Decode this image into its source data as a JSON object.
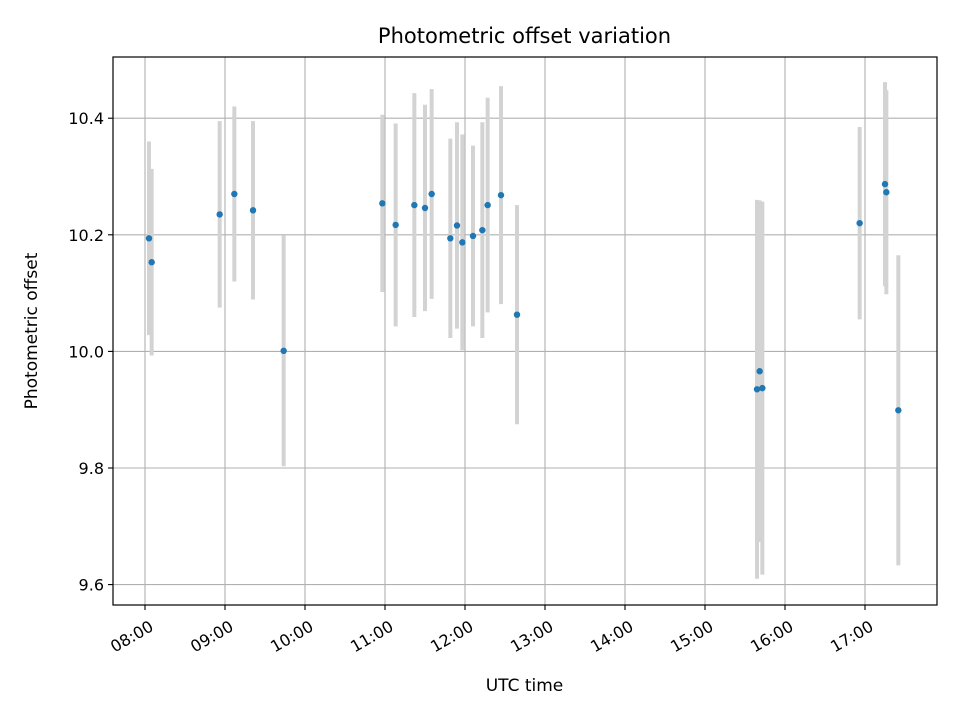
{
  "chart_data": {
    "type": "scatter",
    "title": "Photometric offset variation",
    "xlabel": "UTC time",
    "ylabel": "Photometric offset",
    "xlim": [
      "07:36",
      "17:54"
    ],
    "ylim": [
      9.565,
      10.505
    ],
    "grid": true,
    "x_tick_labels": [
      "08:00",
      "09:00",
      "10:00",
      "11:00",
      "12:00",
      "13:00",
      "14:00",
      "15:00",
      "16:00",
      "17:00"
    ],
    "y_tick_labels": [
      "9.6",
      "9.8",
      "10.0",
      "10.2",
      "10.4"
    ],
    "point_color": "#1f77b4",
    "errorbar_color": "#d3d3d3",
    "points": [
      {
        "time": "08:03",
        "y": 10.194,
        "err": 0.166
      },
      {
        "time": "08:05",
        "y": 10.153,
        "err": 0.16
      },
      {
        "time": "08:56",
        "y": 10.235,
        "err": 0.16
      },
      {
        "time": "09:07",
        "y": 10.27,
        "err": 0.15
      },
      {
        "time": "09:21",
        "y": 10.242,
        "err": 0.153
      },
      {
        "time": "09:44",
        "y": 10.001,
        "err": 0.198
      },
      {
        "time": "10:58",
        "y": 10.254,
        "err": 0.152
      },
      {
        "time": "11:08",
        "y": 10.217,
        "err": 0.174
      },
      {
        "time": "11:22",
        "y": 10.251,
        "err": 0.192
      },
      {
        "time": "11:30",
        "y": 10.246,
        "err": 0.177
      },
      {
        "time": "11:35",
        "y": 10.27,
        "err": 0.18
      },
      {
        "time": "11:49",
        "y": 10.194,
        "err": 0.171
      },
      {
        "time": "11:54",
        "y": 10.216,
        "err": 0.177
      },
      {
        "time": "11:58",
        "y": 10.187,
        "err": 0.185
      },
      {
        "time": "12:06",
        "y": 10.198,
        "err": 0.155
      },
      {
        "time": "12:13",
        "y": 10.208,
        "err": 0.185
      },
      {
        "time": "12:17",
        "y": 10.251,
        "err": 0.184
      },
      {
        "time": "12:27",
        "y": 10.268,
        "err": 0.187
      },
      {
        "time": "12:39",
        "y": 10.063,
        "err": 0.188
      },
      {
        "time": "15:39",
        "y": 9.935,
        "err": 0.325
      },
      {
        "time": "15:41",
        "y": 9.966,
        "err": 0.293
      },
      {
        "time": "15:43",
        "y": 9.937,
        "err": 0.32
      },
      {
        "time": "16:56",
        "y": 10.22,
        "err": 0.165
      },
      {
        "time": "17:15",
        "y": 10.287,
        "err": 0.175
      },
      {
        "time": "17:16",
        "y": 10.273,
        "err": 0.175
      },
      {
        "time": "17:25",
        "y": 9.899,
        "err": 0.266
      }
    ]
  }
}
